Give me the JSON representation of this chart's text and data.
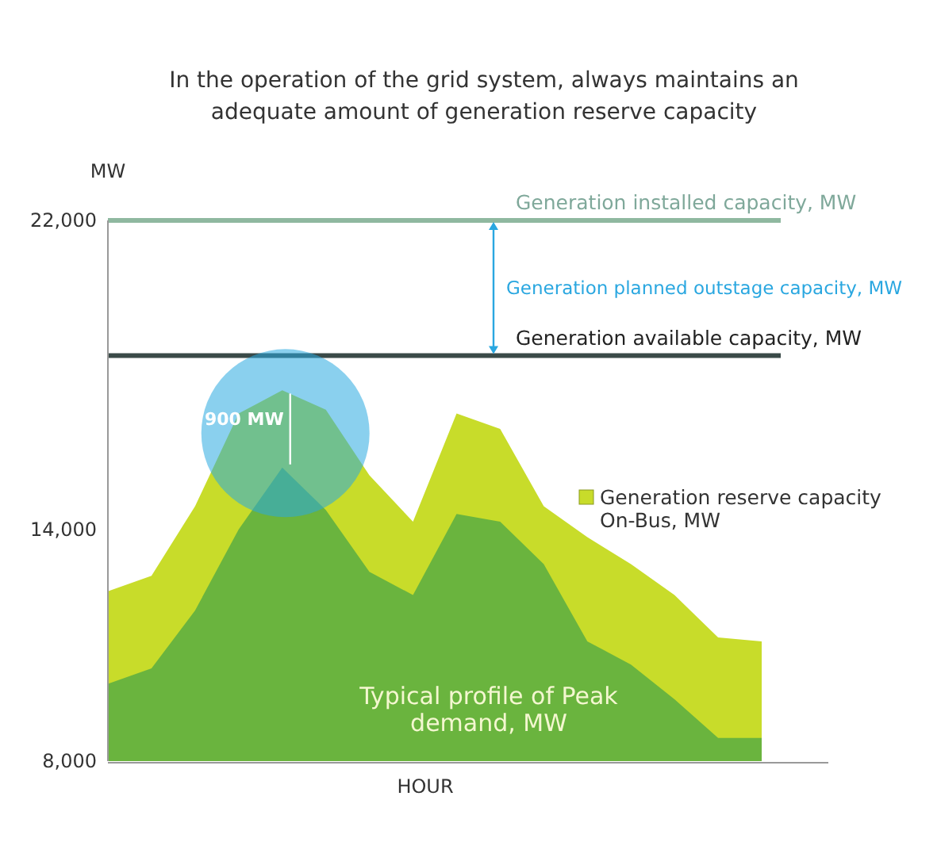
{
  "chart_data": {
    "type": "area",
    "subtitle": "In the operation of the grid system, always maintains an adequate amount of generation reserve capacity",
    "xlabel": "HOUR",
    "ylabel": "MW",
    "categories": [
      null,
      null,
      null,
      null,
      null,
      null,
      null,
      null,
      null,
      null,
      null,
      null,
      null,
      null,
      null,
      null
    ],
    "series": [
      {
        "name": "Generation reserve capacity On-Bus, MW",
        "color": "#c8dc2a",
        "values": [
          12400,
          12800,
          14600,
          17000,
          17600,
          17100,
          15400,
          14200,
          17000,
          16600,
          14600,
          13800,
          13100,
          12300,
          11200,
          11100
        ]
      },
      {
        "name": "Typical profile of Peak demand, MW",
        "color": "#6ab43e",
        "values": [
          10000,
          10400,
          11900,
          14000,
          15600,
          14500,
          12900,
          12300,
          14400,
          14200,
          13100,
          11100,
          10500,
          9600,
          8600,
          8600
        ]
      }
    ],
    "ylim": [
      8000,
      22000
    ],
    "yticks": [
      {
        "value": 8000,
        "label": "8,000"
      },
      {
        "value": 14000,
        "label": "14,000"
      },
      {
        "value": 22000,
        "label": "22,000"
      }
    ],
    "ref_lines": [
      {
        "axis": "y",
        "value": 22000,
        "label": "Generation installed capacity, MW",
        "color": "#8fb8a0"
      },
      {
        "axis": "y",
        "value": 18500,
        "label": "Generation available capacity, MW",
        "color": "#3a4a48"
      }
    ],
    "annotations": [
      "Generation planned outstage capacity, MW",
      "900 MW"
    ],
    "grid": false
  }
}
